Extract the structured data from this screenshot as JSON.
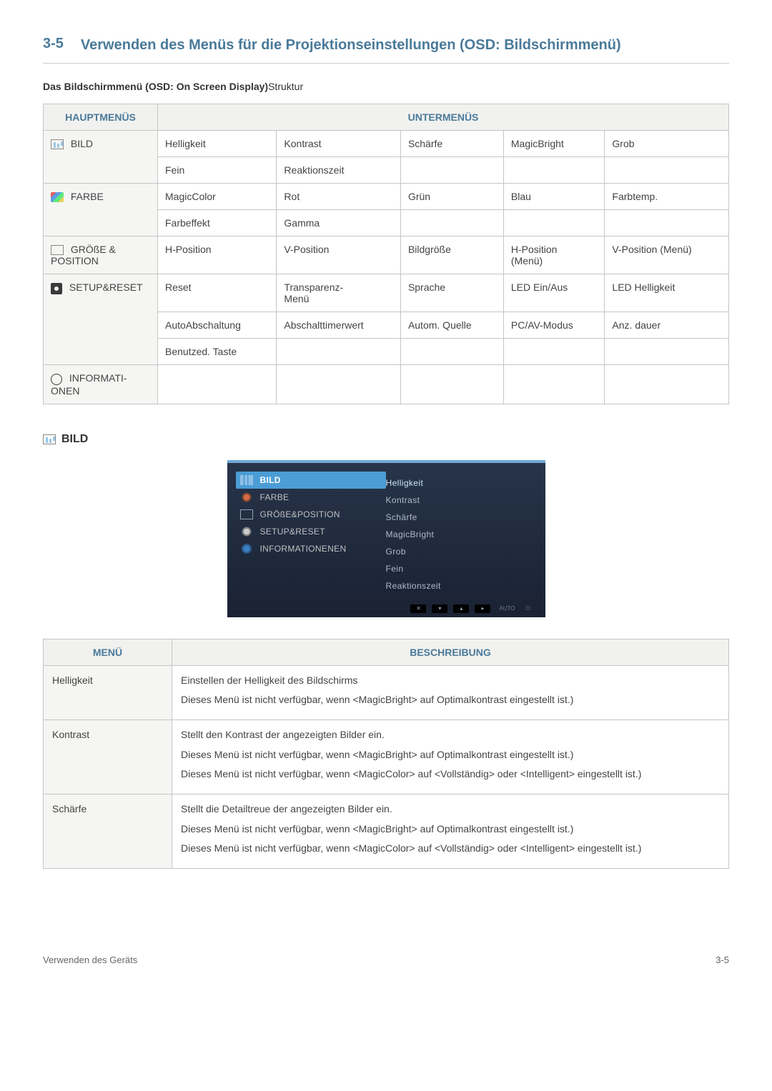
{
  "header": {
    "num": "3-5",
    "title": "Verwenden des Menüs für die Projektionseinstellungen (OSD: Bildschirmmenü)"
  },
  "sub_struct_title_a": "Das Bildschirmmenü (OSD: On Screen Display)",
  "sub_struct_title_b": "Struktur",
  "struct_table": {
    "headers": {
      "main": "HAUPTMENÜS",
      "sub": "UNTERMENÜS"
    },
    "rows": [
      {
        "main": "BILD",
        "icon": "bars",
        "subrows": [
          [
            "Helligkeit",
            "Kontrast",
            "Schärfe",
            "MagicBright",
            "Grob"
          ],
          [
            "Fein",
            "Reaktionszeit",
            "",
            "",
            ""
          ]
        ]
      },
      {
        "main": "FARBE",
        "icon": "palette",
        "subrows": [
          [
            "MagicColor",
            "Rot",
            "Grün",
            "Blau",
            "Farbtemp."
          ],
          [
            "Farbeffekt",
            "Gamma",
            "",
            "",
            ""
          ]
        ]
      },
      {
        "main": "GRÖßE & POSITION",
        "icon": "arrows",
        "subrows": [
          [
            "H-Position",
            "V-Position",
            "Bildgröße",
            "H-Position (Menü)",
            "V-Position (Menü)"
          ]
        ]
      },
      {
        "main": "SETUP&RESET",
        "icon": "gear",
        "subrows": [
          [
            "Reset",
            "Transparenz-Menü",
            "Sprache",
            "LED Ein/Aus",
            "LED Helligkeit"
          ],
          [
            "AutoAbschaltung",
            "Abschalttimerwert",
            "Autom. Quelle",
            "PC/AV-Modus",
            "Anz. dauer"
          ],
          [
            "Benutzed. Taste",
            "",
            "",
            "",
            ""
          ]
        ]
      },
      {
        "main": "INFORMATI-ONEN",
        "icon": "info",
        "subrows": [
          [
            "",
            "",
            "",
            "",
            ""
          ]
        ]
      }
    ]
  },
  "bild_label": "BILD",
  "osd": {
    "left": [
      {
        "label": "BILD",
        "active": true,
        "icon": "bars"
      },
      {
        "label": "FARBE",
        "active": false,
        "icon": "circle"
      },
      {
        "label": "GRÖßE&POSITION",
        "active": false,
        "icon": "square"
      },
      {
        "label": "SETUP&RESET",
        "active": false,
        "icon": "gear"
      },
      {
        "label": "INFORMATIONENEN",
        "active": false,
        "icon": "info"
      }
    ],
    "right": [
      "Helligkeit",
      "Kontrast",
      "Schärfe",
      "MagicBright",
      "Grob",
      "Fein",
      "Reaktionszeit"
    ],
    "footer_keys": [
      "✕",
      "▾",
      "▴",
      "▸"
    ],
    "footer_auto": "AUTO",
    "footer_pow": "⏻"
  },
  "desc_table": {
    "headers": {
      "menu": "MENÜ",
      "desc": "BESCHREIBUNG"
    },
    "rows": [
      {
        "menu": "Helligkeit",
        "desc": [
          "Einstellen der Helligkeit des Bildschirms",
          "Dieses Menü ist nicht verfügbar, wenn <MagicBright> auf Optimalkontrast eingestellt ist.)"
        ]
      },
      {
        "menu": "Kontrast",
        "desc": [
          "Stellt den Kontrast der angezeigten Bilder ein.",
          "Dieses Menü ist nicht verfügbar, wenn <MagicBright> auf Optimalkontrast eingestellt ist.)",
          "Dieses Menü ist nicht verfügbar, wenn <MagicColor> auf <Vollständig> oder <Intelligent> eingestellt ist.)"
        ]
      },
      {
        "menu": "Schärfe",
        "desc": [
          "Stellt die Detailtreue der angezeigten Bilder ein.",
          "Dieses Menü ist nicht verfügbar, wenn <MagicBright> auf Optimalkontrast eingestellt ist.)",
          "Dieses Menü ist nicht verfügbar, wenn <MagicColor> auf <Vollständig> oder <Intelligent> eingestellt ist.)"
        ]
      }
    ]
  },
  "footer": {
    "left": "Verwenden des Geräts",
    "right": "3-5"
  }
}
